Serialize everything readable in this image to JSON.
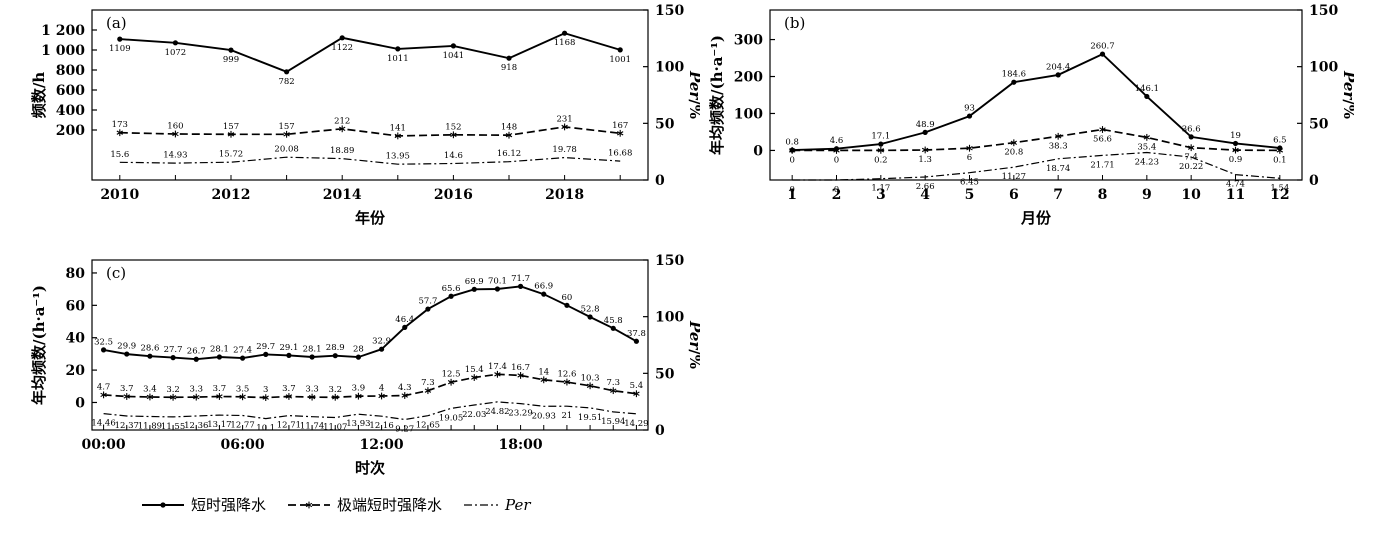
{
  "legend": {
    "items": [
      {
        "label": "短时强降水",
        "style": "solid",
        "marker": "dot",
        "italic": false
      },
      {
        "label": "极端短时强降水",
        "style": "dashed",
        "marker": "asterisk",
        "italic": false
      },
      {
        "label": "Per",
        "style": "dashdot",
        "marker": "none",
        "italic": true
      }
    ]
  },
  "chart_data": [
    {
      "id": "a",
      "type": "line",
      "panel_label": "(a)",
      "x_axis": {
        "title": "年份",
        "categories": [
          "2010",
          "2011",
          "2012",
          "2013",
          "2014",
          "2015",
          "2016",
          "2017",
          "2018",
          "2019"
        ],
        "label_indices": [
          0,
          2,
          4,
          6,
          8
        ]
      },
      "left_axis": {
        "title": "频数/h",
        "range": [
          -300,
          1400
        ],
        "ticks": [
          {
            "v": 200,
            "t": "200"
          },
          {
            "v": 400,
            "t": "400"
          },
          {
            "v": 600,
            "t": "600"
          },
          {
            "v": 800,
            "t": "800"
          },
          {
            "v": 1000,
            "t": "1 000"
          },
          {
            "v": 1200,
            "t": "1 200"
          }
        ]
      },
      "right_axis": {
        "title_italic": "Per",
        "title_suffix": "/%",
        "range": [
          0,
          150
        ],
        "ticks": [
          {
            "v": 0,
            "t": "0"
          },
          {
            "v": 50,
            "t": "50"
          },
          {
            "v": 100,
            "t": "100"
          },
          {
            "v": 150,
            "t": "150"
          }
        ]
      },
      "series": [
        {
          "name": "短时强降水",
          "axis": "left",
          "style": "solid",
          "marker": "dot",
          "label_pos": "below",
          "values": [
            1109,
            1072,
            999,
            782,
            1122,
            1011,
            1041,
            918,
            1168,
            1001
          ]
        },
        {
          "name": "极端短时强降水",
          "axis": "left",
          "style": "dashed",
          "marker": "asterisk",
          "label_pos": "above",
          "values": [
            173,
            160,
            157,
            157,
            212,
            141,
            152,
            148,
            231,
            167
          ]
        },
        {
          "name": "Per",
          "axis": "right",
          "style": "dashdot",
          "marker": "none",
          "label_pos": "above",
          "values": [
            15.6,
            14.93,
            15.72,
            20.08,
            18.89,
            13.95,
            14.6,
            16.12,
            19.78,
            16.68
          ]
        }
      ]
    },
    {
      "id": "b",
      "type": "line",
      "panel_label": "(b)",
      "x_axis": {
        "title": "月份",
        "categories": [
          "1",
          "2",
          "3",
          "4",
          "5",
          "6",
          "7",
          "8",
          "9",
          "10",
          "11",
          "12"
        ],
        "label_indices": [
          0,
          1,
          2,
          3,
          4,
          5,
          6,
          7,
          8,
          9,
          10,
          11
        ]
      },
      "left_axis": {
        "title": "年均频数/(h·a⁻¹)",
        "range": [
          -80,
          380
        ],
        "ticks": [
          {
            "v": 0,
            "t": "0"
          },
          {
            "v": 100,
            "t": "100"
          },
          {
            "v": 200,
            "t": "200"
          },
          {
            "v": 300,
            "t": "300"
          }
        ]
      },
      "right_axis": {
        "title_italic": "Per",
        "title_suffix": "/%",
        "range": [
          0,
          150
        ],
        "ticks": [
          {
            "v": 0,
            "t": "0"
          },
          {
            "v": 50,
            "t": "50"
          },
          {
            "v": 100,
            "t": "100"
          },
          {
            "v": 150,
            "t": "150"
          }
        ]
      },
      "series": [
        {
          "name": "短时强降水",
          "axis": "left",
          "style": "solid",
          "marker": "dot",
          "label_pos": "above",
          "values": [
            0.8,
            4.6,
            17.1,
            48.9,
            93,
            184.6,
            204.4,
            260.7,
            146.1,
            36.6,
            19,
            6.5
          ]
        },
        {
          "name": "极端短时强降水",
          "axis": "left",
          "style": "dashed",
          "marker": "asterisk",
          "label_pos": "below",
          "values": [
            0,
            0,
            0.2,
            1.3,
            6,
            20.8,
            38.3,
            56.6,
            35.4,
            7.4,
            0.9,
            0.1
          ]
        },
        {
          "name": "Per",
          "axis": "right",
          "style": "dashdot",
          "marker": "none",
          "label_pos": "below",
          "values": [
            0,
            0,
            1.17,
            2.66,
            6.45,
            11.27,
            18.74,
            21.71,
            24.23,
            20.22,
            4.74,
            1.54
          ]
        }
      ]
    },
    {
      "id": "c",
      "type": "line",
      "panel_label": "(c)",
      "x_axis": {
        "title": "时次",
        "categories": [
          "00:00",
          "01:00",
          "02:00",
          "03:00",
          "04:00",
          "05:00",
          "06:00",
          "07:00",
          "08:00",
          "09:00",
          "10:00",
          "11:00",
          "12:00",
          "13:00",
          "14:00",
          "15:00",
          "16:00",
          "17:00",
          "18:00",
          "19:00",
          "20:00",
          "21:00",
          "22:00",
          "23:00"
        ],
        "label_indices": [
          0,
          6,
          12,
          18
        ]
      },
      "left_axis": {
        "title": "年均频数/(h·a⁻¹)",
        "range": [
          -17,
          88
        ],
        "ticks": [
          {
            "v": 0,
            "t": "0"
          },
          {
            "v": 20,
            "t": "20"
          },
          {
            "v": 40,
            "t": "40"
          },
          {
            "v": 60,
            "t": "60"
          },
          {
            "v": 80,
            "t": "80"
          }
        ]
      },
      "right_axis": {
        "title_italic": "Per",
        "title_suffix": "/%",
        "range": [
          0,
          150
        ],
        "ticks": [
          {
            "v": 0,
            "t": "0"
          },
          {
            "v": 50,
            "t": "50"
          },
          {
            "v": 100,
            "t": "100"
          },
          {
            "v": 150,
            "t": "150"
          }
        ]
      },
      "series": [
        {
          "name": "短时强降水",
          "axis": "left",
          "style": "solid",
          "marker": "dot",
          "label_pos": "above",
          "values": [
            32.5,
            29.9,
            28.6,
            27.7,
            26.7,
            28.1,
            27.4,
            29.7,
            29.1,
            28.1,
            28.9,
            28,
            32.9,
            46.4,
            57.7,
            65.6,
            69.9,
            70.1,
            71.7,
            66.9,
            60,
            52.8,
            45.8,
            37.8
          ]
        },
        {
          "name": "极端短时强降水",
          "axis": "left",
          "style": "dashed",
          "marker": "asterisk",
          "label_pos": "above",
          "values": [
            4.7,
            3.7,
            3.4,
            3.2,
            3.3,
            3.7,
            3.5,
            3,
            3.7,
            3.3,
            3.2,
            3.9,
            4,
            4.3,
            7.3,
            12.5,
            15.4,
            17.4,
            16.7,
            14,
            12.6,
            10.3,
            7.3,
            5.4
          ]
        },
        {
          "name": "Per",
          "axis": "right",
          "style": "dashdot",
          "marker": "none",
          "label_pos": "below",
          "values": [
            14.46,
            12.37,
            11.89,
            11.55,
            12.36,
            13.17,
            12.77,
            10.1,
            12.71,
            11.74,
            11.07,
            13.93,
            12.16,
            9.27,
            12.65,
            19.05,
            22.03,
            24.82,
            23.29,
            20.93,
            21,
            19.51,
            15.94,
            14.29
          ]
        }
      ]
    }
  ]
}
